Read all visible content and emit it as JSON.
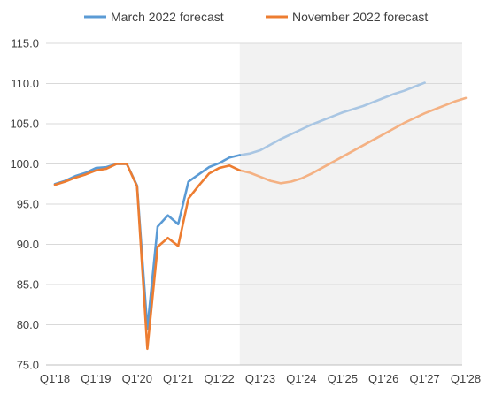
{
  "chart_data": {
    "type": "line",
    "title": "",
    "xlabel": "",
    "ylabel": "",
    "ylim": [
      75,
      115
    ],
    "yticks": [
      "75.0",
      "80.0",
      "85.0",
      "90.0",
      "95.0",
      "100.0",
      "105.0",
      "110.0",
      "115.0"
    ],
    "xticks": [
      "Q1'18",
      "Q1'19",
      "Q1'20",
      "Q1'21",
      "Q1'22",
      "Q1'23",
      "Q1'24",
      "Q1'25",
      "Q1'26",
      "Q1'27",
      "Q1'28"
    ],
    "grid": "horizontal",
    "legend": "top",
    "forecast_shading_start": "Q3'22",
    "series": [
      {
        "name": "March 2022 forecast",
        "color": "#5B9BD5",
        "forecast_color": "#A9C6E3",
        "actual_points": 19,
        "x": [
          "Q1'18",
          "Q2'18",
          "Q3'18",
          "Q4'18",
          "Q1'19",
          "Q2'19",
          "Q3'19",
          "Q4'19",
          "Q1'20",
          "Q2'20",
          "Q3'20",
          "Q4'20",
          "Q1'21",
          "Q2'21",
          "Q3'21",
          "Q4'21",
          "Q1'22",
          "Q2'22",
          "Q3'22",
          "Q4'22",
          "Q1'23",
          "Q2'23",
          "Q3'23",
          "Q4'23",
          "Q1'24",
          "Q2'24",
          "Q3'24",
          "Q4'24",
          "Q1'25",
          "Q2'25",
          "Q3'25",
          "Q4'25",
          "Q1'26",
          "Q2'26",
          "Q3'26",
          "Q4'26",
          "Q1'27"
        ],
        "values": [
          97.5,
          97.9,
          98.5,
          98.9,
          99.5,
          99.6,
          100.0,
          100.0,
          97.3,
          79.5,
          92.2,
          93.6,
          92.5,
          97.8,
          98.7,
          99.6,
          100.1,
          100.8,
          101.1,
          101.3,
          101.7,
          102.4,
          103.1,
          103.7,
          104.3,
          104.9,
          105.4,
          105.9,
          106.4,
          106.8,
          107.2,
          107.7,
          108.2,
          108.7,
          109.1,
          109.6,
          110.1
        ]
      },
      {
        "name": "November 2022 forecast",
        "color": "#ED7D31",
        "forecast_color": "#F4B183",
        "actual_points": 19,
        "x": [
          "Q1'18",
          "Q2'18",
          "Q3'18",
          "Q4'18",
          "Q1'19",
          "Q2'19",
          "Q3'19",
          "Q4'19",
          "Q1'20",
          "Q2'20",
          "Q3'20",
          "Q4'20",
          "Q1'21",
          "Q2'21",
          "Q3'21",
          "Q4'21",
          "Q1'22",
          "Q2'22",
          "Q3'22",
          "Q4'22",
          "Q1'23",
          "Q2'23",
          "Q3'23",
          "Q4'23",
          "Q1'24",
          "Q2'24",
          "Q3'24",
          "Q4'24",
          "Q1'25",
          "Q2'25",
          "Q3'25",
          "Q4'25",
          "Q1'26",
          "Q2'26",
          "Q3'26",
          "Q4'26",
          "Q1'27",
          "Q2'27",
          "Q3'27",
          "Q4'27",
          "Q1'28"
        ],
        "values": [
          97.4,
          97.8,
          98.3,
          98.7,
          99.2,
          99.4,
          100.0,
          100.0,
          97.2,
          77.0,
          89.7,
          90.8,
          89.8,
          95.7,
          97.3,
          98.8,
          99.5,
          99.8,
          99.2,
          98.9,
          98.4,
          97.9,
          97.6,
          97.8,
          98.2,
          98.8,
          99.5,
          100.2,
          100.9,
          101.6,
          102.3,
          103.0,
          103.7,
          104.4,
          105.1,
          105.7,
          106.3,
          106.8,
          107.3,
          107.8,
          108.2
        ]
      }
    ]
  }
}
